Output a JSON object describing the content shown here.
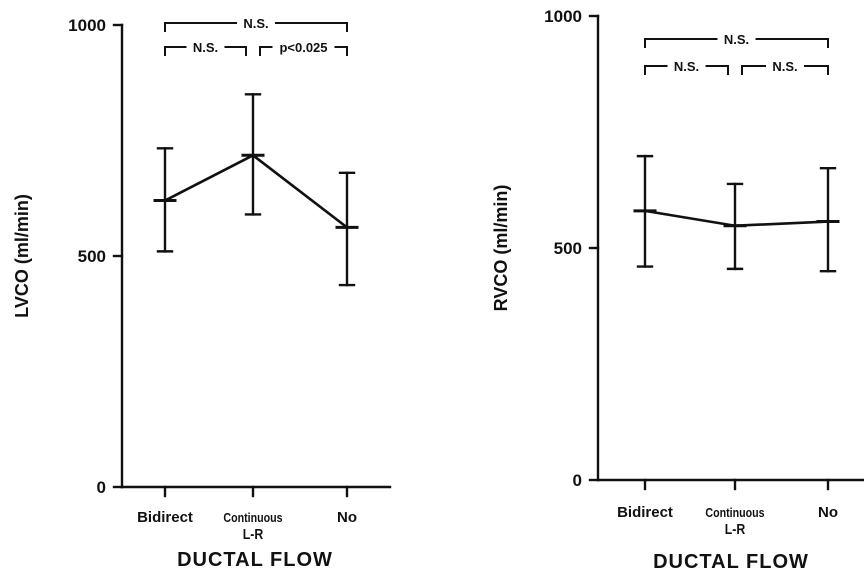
{
  "chart_data": [
    {
      "type": "line",
      "categories": [
        "Bidirect",
        "Continuous\nL-R",
        "No"
      ],
      "xlabel": "DUCTAL FLOW",
      "ylabel": "LVCO (ml/min)",
      "ylim": [
        0,
        1000
      ],
      "yticks": [
        0,
        500,
        1000
      ],
      "grid": false,
      "series": [
        {
          "values": [
            620,
            718,
            562
          ],
          "error_low": [
            510,
            590,
            437
          ],
          "error_high": [
            733,
            850,
            680
          ]
        }
      ],
      "significance": [
        {
          "from": 0,
          "to": 2,
          "label": "N.S."
        },
        {
          "from": 0,
          "to": 1,
          "label": "N.S."
        },
        {
          "from": 1,
          "to": 2,
          "label": "p<0.025"
        }
      ]
    },
    {
      "type": "line",
      "categories": [
        "Bidirect",
        "Continuous\nL-R",
        "No"
      ],
      "xlabel": "DUCTAL FLOW",
      "ylabel": "RVCO (ml/min)",
      "ylim": [
        0,
        1000
      ],
      "yticks": [
        0,
        500,
        1000
      ],
      "grid": false,
      "series": [
        {
          "values": [
            580,
            548,
            557
          ],
          "error_low": [
            460,
            455,
            450
          ],
          "error_high": [
            698,
            638,
            672
          ]
        }
      ],
      "significance": [
        {
          "from": 0,
          "to": 2,
          "label": "N.S."
        },
        {
          "from": 0,
          "to": 1,
          "label": "N.S."
        },
        {
          "from": 1,
          "to": 2,
          "label": "N.S."
        }
      ]
    }
  ]
}
